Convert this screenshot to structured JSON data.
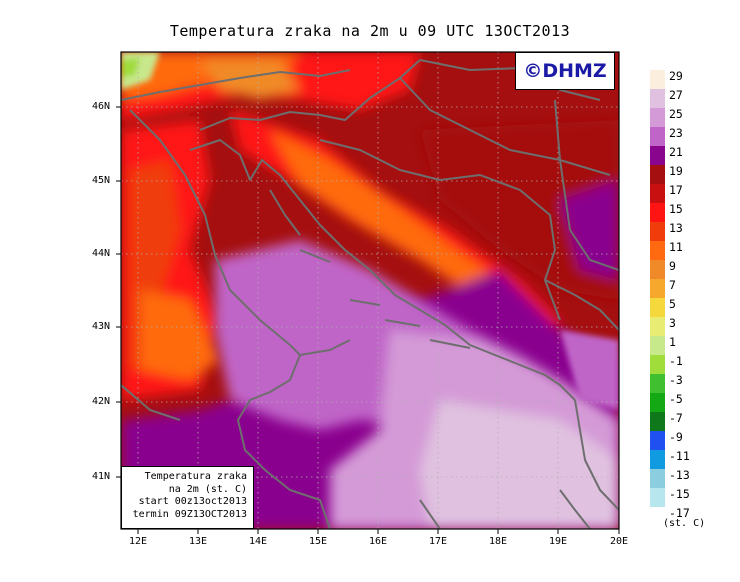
{
  "title": "Temperatura zraka na 2m u 09 UTC 13OCT2013",
  "credit": "©DHMZ",
  "info_box": {
    "lines": [
      "Temperatura zraka",
      "na 2m (st. C)",
      "start 00z13oct2013",
      "termin 09Z13OCT2013"
    ]
  },
  "map": {
    "lon_labels": [
      "12E",
      "13E",
      "14E",
      "15E",
      "16E",
      "17E",
      "18E",
      "19E",
      "20E"
    ],
    "lat_labels": [
      "46N",
      "45N",
      "44N",
      "43N",
      "42N",
      "41N"
    ],
    "lon_range": [
      11.75,
      20.0
    ],
    "lat_range": [
      40.25,
      46.75
    ]
  },
  "legend": {
    "units": "(st. C)",
    "labels": [
      "29",
      "27",
      "25",
      "23",
      "21",
      "19",
      "17",
      "15",
      "13",
      "11",
      "9",
      "7",
      "5",
      "3",
      "1",
      "-1",
      "-3",
      "-5",
      "-7",
      "-9",
      "-11",
      "-13",
      "-15",
      "-17"
    ],
    "colors": [
      "#fbeede",
      "#e0c2e0",
      "#d49ad7",
      "#c065c8",
      "#8a058e",
      "#a50f0f",
      "#c81010",
      "#ff1414",
      "#f03c0a",
      "#ff6a10",
      "#f08a28",
      "#f5a82c",
      "#f5d83c",
      "#e8ec72",
      "#c8e88c",
      "#a0dc3a",
      "#40c030",
      "#14a814",
      "#0e781a",
      "#2050f0",
      "#109be0",
      "#8ccde0",
      "#b8e6ee",
      "#e8f8fa"
    ]
  }
}
